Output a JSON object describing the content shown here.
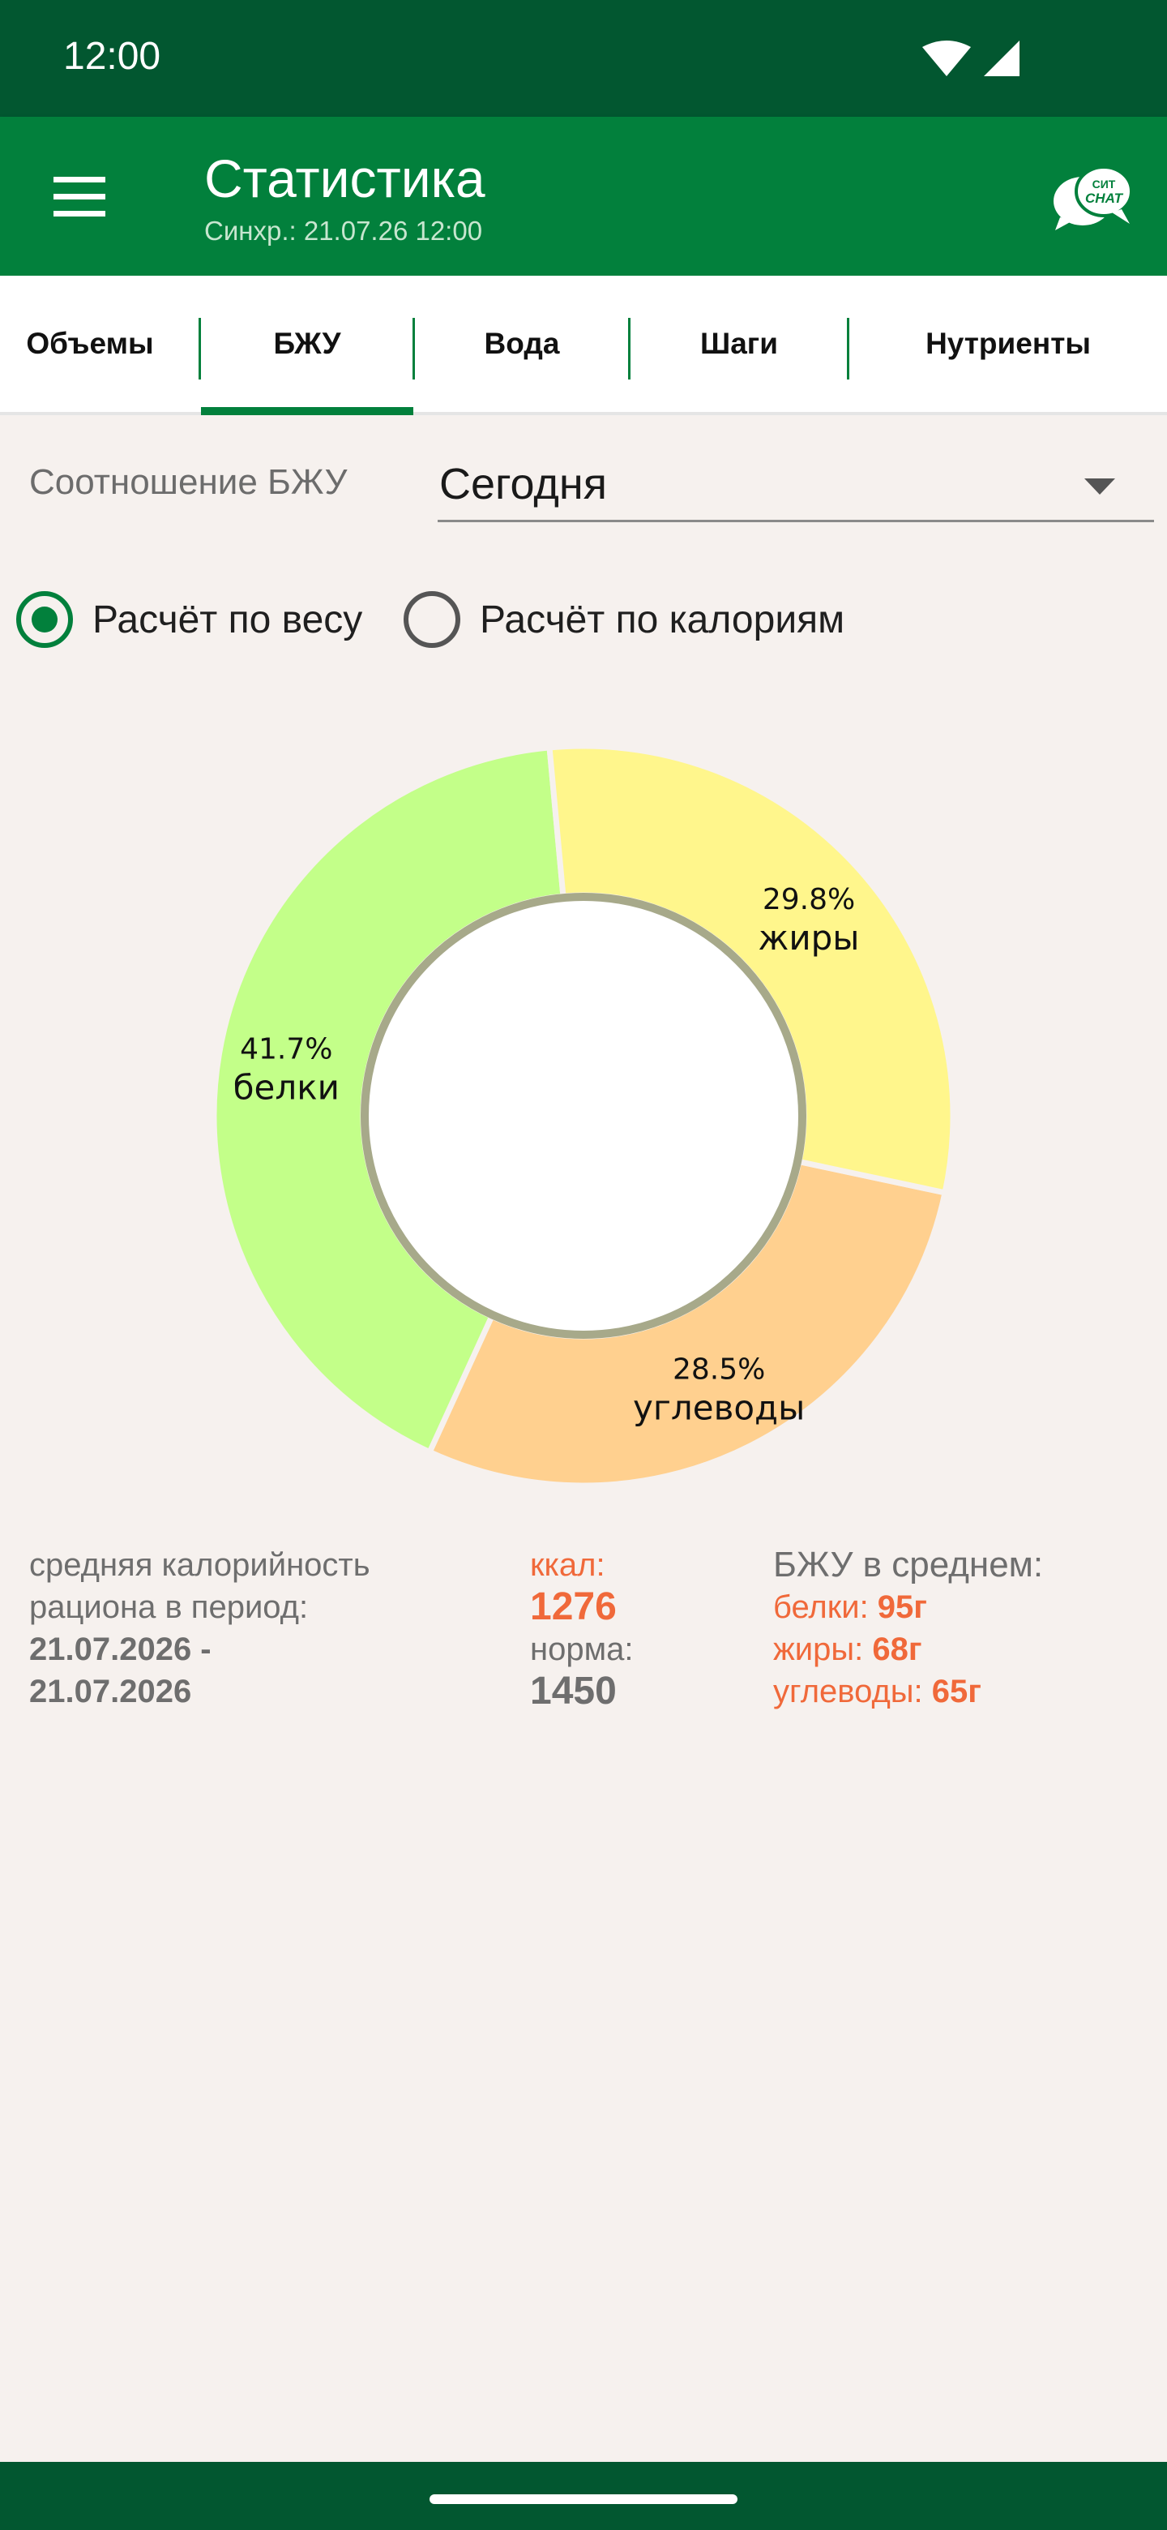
{
  "status_bar": {
    "time": "12:00"
  },
  "app_bar": {
    "title": "Статистика",
    "subtitle": "Синхр.: 21.07.26 12:00",
    "chat_logo_line1": "СИТ",
    "chat_logo_line2": "CHAT"
  },
  "tabs": [
    "Объемы",
    "БЖУ",
    "Вода",
    "Шаги",
    "Нутриенты"
  ],
  "active_tab": "БЖУ",
  "filter": {
    "label": "Соотношение БЖУ",
    "period": "Сегодня"
  },
  "calc_mode": {
    "options": [
      "Расчёт по весу",
      "Расчёт по калориям"
    ],
    "selected": "Расчёт по весу"
  },
  "chart_data": {
    "type": "pie",
    "donut": true,
    "slices": [
      {
        "label": "углеводы",
        "percent_text": "28.5%",
        "value": 28.5,
        "color": "#ffd08f"
      },
      {
        "label": "белки",
        "percent_text": "41.7%",
        "value": 41.7,
        "color": "#c3ff89"
      },
      {
        "label": "жиры",
        "percent_text": "29.8%",
        "value": 29.8,
        "color": "#fff68c"
      }
    ]
  },
  "summary": {
    "avg_label_line1": "средняя калорийность",
    "avg_label_line2": "рациона в период:",
    "period_line1": "21.07.2026 -",
    "period_line2": "21.07.2026",
    "kcal_label": "ккал:",
    "kcal_value": "1276",
    "norm_label": "норма:",
    "norm_value": "1450",
    "bju_title": "БЖУ в среднем:",
    "protein_label": "белки: ",
    "protein_value": "95г",
    "fat_label": "жиры: ",
    "fat_value": "68г",
    "carbs_label": "углеводы: ",
    "carbs_value": "65г"
  },
  "colors": {
    "brand_dark": "#025730",
    "brand": "#02803c",
    "accent": "#f0693a",
    "background": "#f6f1ee"
  }
}
